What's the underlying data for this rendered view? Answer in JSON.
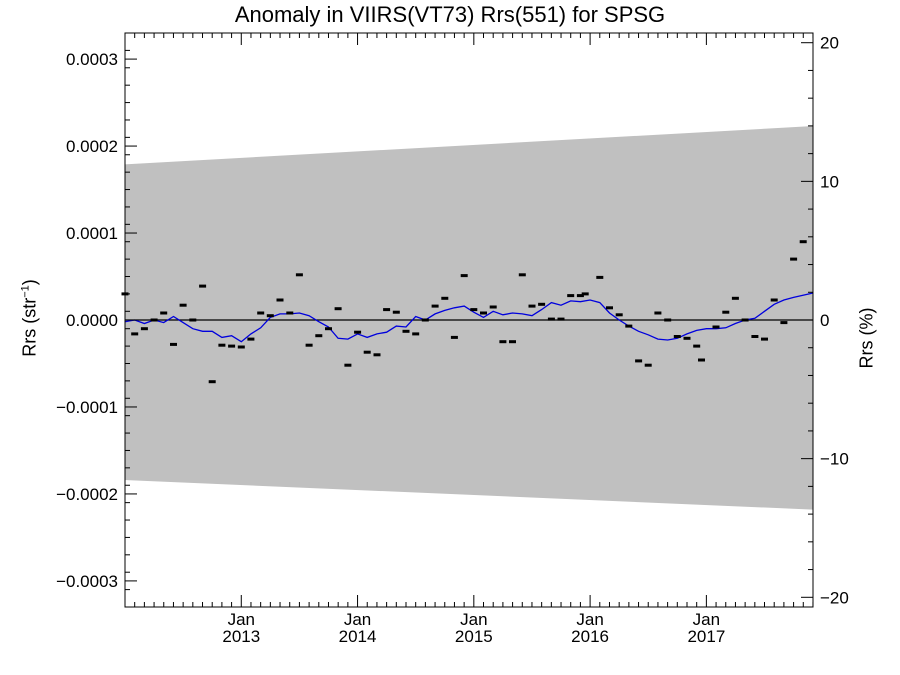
{
  "chart_data": {
    "type": "scatter",
    "title": "Anomaly in VIIRS(VT73) Rrs(551) for SPSG",
    "ylabel_left_main": "Rrs (str",
    "ylabel_left_exp": "−1",
    "ylabel_left_close": ")",
    "ylabel_right": "Rrs (%)",
    "xlim": [
      2012.0,
      2017.917
    ],
    "ylim_left": [
      -0.00033,
      0.00033
    ],
    "ylim_right": [
      -20.7,
      20.7
    ],
    "left_ticks": [
      {
        "value": 0.0003,
        "label": "0.0003"
      },
      {
        "value": 0.0002,
        "label": "0.0002"
      },
      {
        "value": 0.0001,
        "label": "0.0001"
      },
      {
        "value": 0.0,
        "label": "0.0000"
      },
      {
        "value": -0.0001,
        "label": "−0.0001"
      },
      {
        "value": -0.0002,
        "label": "−0.0002"
      },
      {
        "value": -0.0003,
        "label": "−0.0003"
      }
    ],
    "right_ticks": [
      {
        "value": 20,
        "label": "20"
      },
      {
        "value": 10,
        "label": "10"
      },
      {
        "value": 0,
        "label": "0"
      },
      {
        "value": -10,
        "label": "−10"
      },
      {
        "value": -20,
        "label": "−20"
      }
    ],
    "x_ticks": [
      {
        "value": 2013.0,
        "month": "Jan",
        "year": "2013"
      },
      {
        "value": 2014.0,
        "month": "Jan",
        "year": "2014"
      },
      {
        "value": 2015.0,
        "month": "Jan",
        "year": "2015"
      },
      {
        "value": 2016.0,
        "month": "Jan",
        "year": "2016"
      },
      {
        "value": 2017.0,
        "month": "Jan",
        "year": "2017"
      }
    ],
    "band": {
      "upper": [
        [
          2012.0,
          0.000179
        ],
        [
          2017.917,
          0.000223
        ]
      ],
      "lower": [
        [
          2012.0,
          -0.000184
        ],
        [
          2017.917,
          -0.000218
        ]
      ],
      "color": "#c0c0c0"
    },
    "points": [
      [
        2012.0,
        3e-05
      ],
      [
        2012.083,
        -1.6e-05
      ],
      [
        2012.167,
        -1e-05
      ],
      [
        2012.25,
        0.0
      ],
      [
        2012.333,
        8e-06
      ],
      [
        2012.417,
        -2.8e-05
      ],
      [
        2012.5,
        1.7e-05
      ],
      [
        2012.583,
        0.0
      ],
      [
        2012.667,
        3.9e-05
      ],
      [
        2012.75,
        -7.1e-05
      ],
      [
        2012.833,
        -2.9e-05
      ],
      [
        2012.917,
        -3e-05
      ],
      [
        2013.0,
        -3.1e-05
      ],
      [
        2013.083,
        -2.2e-05
      ],
      [
        2013.167,
        8e-06
      ],
      [
        2013.25,
        5e-06
      ],
      [
        2013.333,
        2.3e-05
      ],
      [
        2013.417,
        8e-06
      ],
      [
        2013.5,
        5.2e-05
      ],
      [
        2013.583,
        -2.9e-05
      ],
      [
        2013.667,
        -1.8e-05
      ],
      [
        2013.75,
        -1e-05
      ],
      [
        2013.833,
        1.3e-05
      ],
      [
        2013.917,
        -5.2e-05
      ],
      [
        2014.0,
        -1.4e-05
      ],
      [
        2014.083,
        -3.7e-05
      ],
      [
        2014.167,
        -4e-05
      ],
      [
        2014.25,
        1.2e-05
      ],
      [
        2014.333,
        9e-06
      ],
      [
        2014.417,
        -1.3e-05
      ],
      [
        2014.5,
        -1.6e-05
      ],
      [
        2014.583,
        0.0
      ],
      [
        2014.667,
        1.6e-05
      ],
      [
        2014.75,
        2.5e-05
      ],
      [
        2014.833,
        -2e-05
      ],
      [
        2014.917,
        5.1e-05
      ],
      [
        2015.0,
        1.2e-05
      ],
      [
        2015.083,
        8e-06
      ],
      [
        2015.167,
        1.5e-05
      ],
      [
        2015.25,
        -2.5e-05
      ],
      [
        2015.333,
        -2.5e-05
      ],
      [
        2015.417,
        5.2e-05
      ],
      [
        2015.5,
        1.6e-05
      ],
      [
        2015.583,
        1.8e-05
      ],
      [
        2015.667,
        1e-06
      ],
      [
        2015.75,
        1e-06
      ],
      [
        2015.833,
        2.8e-05
      ],
      [
        2015.917,
        2.8e-05
      ],
      [
        2015.958,
        3e-05
      ],
      [
        2016.083,
        4.9e-05
      ],
      [
        2016.167,
        1.4e-05
      ],
      [
        2016.25,
        6e-06
      ],
      [
        2016.333,
        -7e-06
      ],
      [
        2016.417,
        -4.7e-05
      ],
      [
        2016.5,
        -5.2e-05
      ],
      [
        2016.583,
        8e-06
      ],
      [
        2016.667,
        0.0
      ],
      [
        2016.75,
        -1.9e-05
      ],
      [
        2016.833,
        -2.1e-05
      ],
      [
        2016.917,
        -3e-05
      ],
      [
        2016.958,
        -4.6e-05
      ],
      [
        2017.083,
        -8e-06
      ],
      [
        2017.167,
        9e-06
      ],
      [
        2017.25,
        2.5e-05
      ],
      [
        2017.333,
        0.0
      ],
      [
        2017.417,
        -1.9e-05
      ],
      [
        2017.5,
        -2.2e-05
      ],
      [
        2017.583,
        2.3e-05
      ],
      [
        2017.667,
        -3e-06
      ],
      [
        2017.75,
        7e-05
      ],
      [
        2017.833,
        9e-05
      ]
    ],
    "trend": [
      [
        2012.0,
        -2e-06
      ],
      [
        2012.083,
        0.0
      ],
      [
        2012.167,
        -4e-06
      ],
      [
        2012.25,
        0.0
      ],
      [
        2012.333,
        -3e-06
      ],
      [
        2012.417,
        4e-06
      ],
      [
        2012.5,
        -3e-06
      ],
      [
        2012.583,
        -1e-05
      ],
      [
        2012.667,
        -1.3e-05
      ],
      [
        2012.75,
        -1.3e-05
      ],
      [
        2012.833,
        -2e-05
      ],
      [
        2012.917,
        -1.8e-05
      ],
      [
        2013.0,
        -2.5e-05
      ],
      [
        2013.083,
        -1.6e-05
      ],
      [
        2013.167,
        -9e-06
      ],
      [
        2013.25,
        3e-06
      ],
      [
        2013.333,
        7e-06
      ],
      [
        2013.417,
        7e-06
      ],
      [
        2013.5,
        8e-06
      ],
      [
        2013.583,
        5e-06
      ],
      [
        2013.667,
        -2e-06
      ],
      [
        2013.75,
        -8e-06
      ],
      [
        2013.833,
        -2.1e-05
      ],
      [
        2013.917,
        -2.2e-05
      ],
      [
        2014.0,
        -1.6e-05
      ],
      [
        2014.083,
        -2e-05
      ],
      [
        2014.167,
        -1.6e-05
      ],
      [
        2014.25,
        -1.4e-05
      ],
      [
        2014.333,
        -7e-06
      ],
      [
        2014.417,
        -8e-06
      ],
      [
        2014.5,
        4e-06
      ],
      [
        2014.583,
        0.0
      ],
      [
        2014.667,
        7e-06
      ],
      [
        2014.75,
        1.1e-05
      ],
      [
        2014.833,
        1.4e-05
      ],
      [
        2014.917,
        1.6e-05
      ],
      [
        2015.0,
        9e-06
      ],
      [
        2015.083,
        3e-06
      ],
      [
        2015.167,
        1e-05
      ],
      [
        2015.25,
        6e-06
      ],
      [
        2015.333,
        8e-06
      ],
      [
        2015.417,
        7e-06
      ],
      [
        2015.5,
        5e-06
      ],
      [
        2015.583,
        1.2e-05
      ],
      [
        2015.667,
        2e-05
      ],
      [
        2015.75,
        1.7e-05
      ],
      [
        2015.833,
        2.2e-05
      ],
      [
        2015.917,
        2.1e-05
      ],
      [
        2016.0,
        2.3e-05
      ],
      [
        2016.083,
        2e-05
      ],
      [
        2016.167,
        8e-06
      ],
      [
        2016.25,
        0.0
      ],
      [
        2016.333,
        -7e-06
      ],
      [
        2016.417,
        -1.3e-05
      ],
      [
        2016.5,
        -1.7e-05
      ],
      [
        2016.583,
        -2.2e-05
      ],
      [
        2016.667,
        -2.3e-05
      ],
      [
        2016.75,
        -2.1e-05
      ],
      [
        2016.833,
        -1.6e-05
      ],
      [
        2016.917,
        -1.2e-05
      ],
      [
        2017.0,
        -1e-05
      ],
      [
        2017.083,
        -1e-05
      ],
      [
        2017.167,
        -9e-06
      ],
      [
        2017.25,
        -4e-06
      ],
      [
        2017.333,
        0.0
      ],
      [
        2017.417,
        2e-06
      ],
      [
        2017.5,
        1e-05
      ],
      [
        2017.583,
        1.8e-05
      ],
      [
        2017.667,
        2.3e-05
      ],
      [
        2017.75,
        2.6e-05
      ],
      [
        2017.917,
        3.1e-05
      ]
    ],
    "trend_color": "#0000dd",
    "zero_line": 0.0,
    "grid": false,
    "legend": "none"
  }
}
